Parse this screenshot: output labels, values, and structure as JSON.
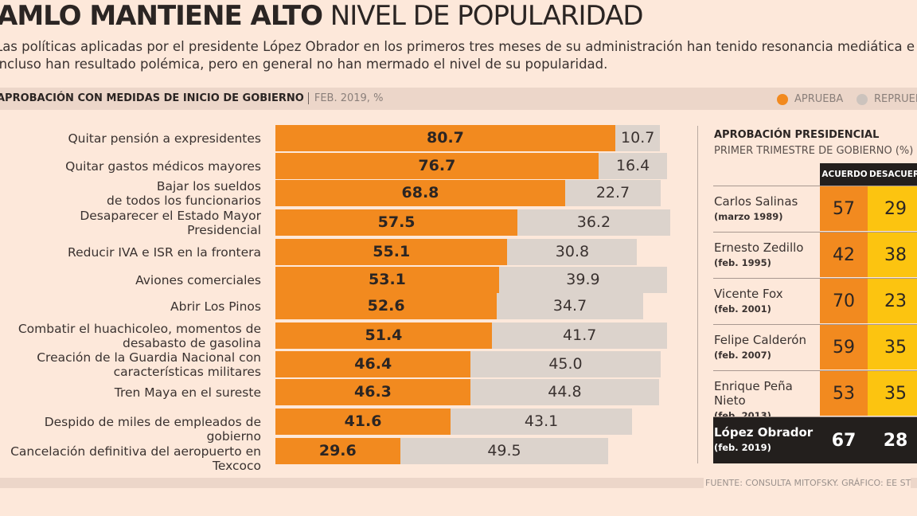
{
  "header": {
    "title_bold": "AMLO MANTIENE ALTO",
    "title_light": "NIVEL DE POPULARIDAD",
    "subtitle": "Las políticas aplicadas por el presidente López Obrador en los primeros tres meses de su administración han tenido resonancia mediática e incluso han resultado polémica, pero en general no han mermado el nivel de su popularidad."
  },
  "band": {
    "title": "APROBACIÓN CON MEDIDAS DE INICIO DE GOBIERNO",
    "date": "FEB. 2019, %"
  },
  "colors": {
    "background": "#fde8da",
    "aprueba": "#f28a1f",
    "reprueba": "#dcd3cc",
    "desacuerdo": "#fcc410",
    "dark": "#231f1d"
  },
  "chart_data": {
    "type": "bar",
    "stacked": true,
    "orientation": "horizontal",
    "title": "APROBACIÓN CON MEDIDAS DE INICIO DE GOBIERNO",
    "ylabel": "",
    "xlabel": "FEB. 2019, %",
    "legend": "top-right",
    "categories": [
      "Quitar pensión a expresidentes",
      "Quitar gastos médicos mayores",
      "Bajar los sueldos\nde todos los funcionarios",
      "Desaparecer el Estado Mayor\nPresidencial",
      "Reducir IVA e ISR en la frontera",
      "Aviones comerciales",
      "Abrir Los Pinos",
      "Combatir el huachicoleo, momentos de\ndesabasto de gasolina",
      "Creación de la Guardia Nacional con\ncaracterísticas militares",
      "Tren Maya en el sureste",
      "Despido de miles de empleados de gobierno",
      "Cancelación definitiva del aeropuerto en Texcoco"
    ],
    "series": [
      {
        "name": "APRUEBA",
        "values": [
          80.7,
          76.7,
          68.8,
          57.5,
          55.1,
          53.1,
          52.6,
          51.4,
          46.4,
          46.3,
          41.6,
          29.6
        ]
      },
      {
        "name": "REPRUEBA",
        "values": [
          10.7,
          16.4,
          22.7,
          36.2,
          30.8,
          39.9,
          34.7,
          41.7,
          45.0,
          44.8,
          43.1,
          49.5
        ]
      }
    ]
  },
  "presidential": {
    "title": "APROBACIÓN PRESIDENCIAL",
    "subtitle": "PRIMER TRIMESTRE DE GOBIERNO (%)",
    "columns": [
      "ACUERDO",
      "DESACUERDO"
    ],
    "rows": [
      {
        "name": "Carlos Salinas",
        "date": "(marzo 1989)",
        "acuerdo": "57",
        "desacuerdo": "29"
      },
      {
        "name": "Ernesto Zedillo",
        "date": "(feb. 1995)",
        "acuerdo": "42",
        "desacuerdo": "38"
      },
      {
        "name": "Vicente Fox",
        "date": "(feb. 2001)",
        "acuerdo": "70",
        "desacuerdo": "23"
      },
      {
        "name": "Felipe Calderón",
        "date": "(feb. 2007)",
        "acuerdo": "59",
        "desacuerdo": "35"
      },
      {
        "name": "Enrique Peña Nieto",
        "date": "(feb. 2013)",
        "acuerdo": "53",
        "desacuerdo": "35"
      },
      {
        "name": "López Obrador",
        "date": "(feb. 2019)",
        "acuerdo": "67",
        "desacuerdo": "28"
      }
    ]
  },
  "footer": {
    "source": "FUENTE: CONSULTA MITOFSKY. GRÁFICO: EE ST"
  }
}
